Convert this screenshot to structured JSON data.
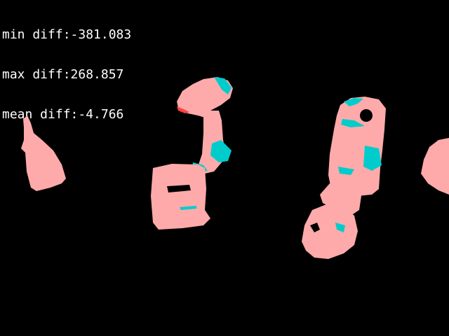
{
  "stats": {
    "min_diff": "min diff:-381.083",
    "max_diff": "max diff:268.857",
    "mean_diff": "mean diff:-4.766"
  },
  "colors": {
    "background": "#000000",
    "text": "#ffffff",
    "positive": "#ffaaaa",
    "negative": "#00cccc",
    "edge": "#ff4444"
  }
}
